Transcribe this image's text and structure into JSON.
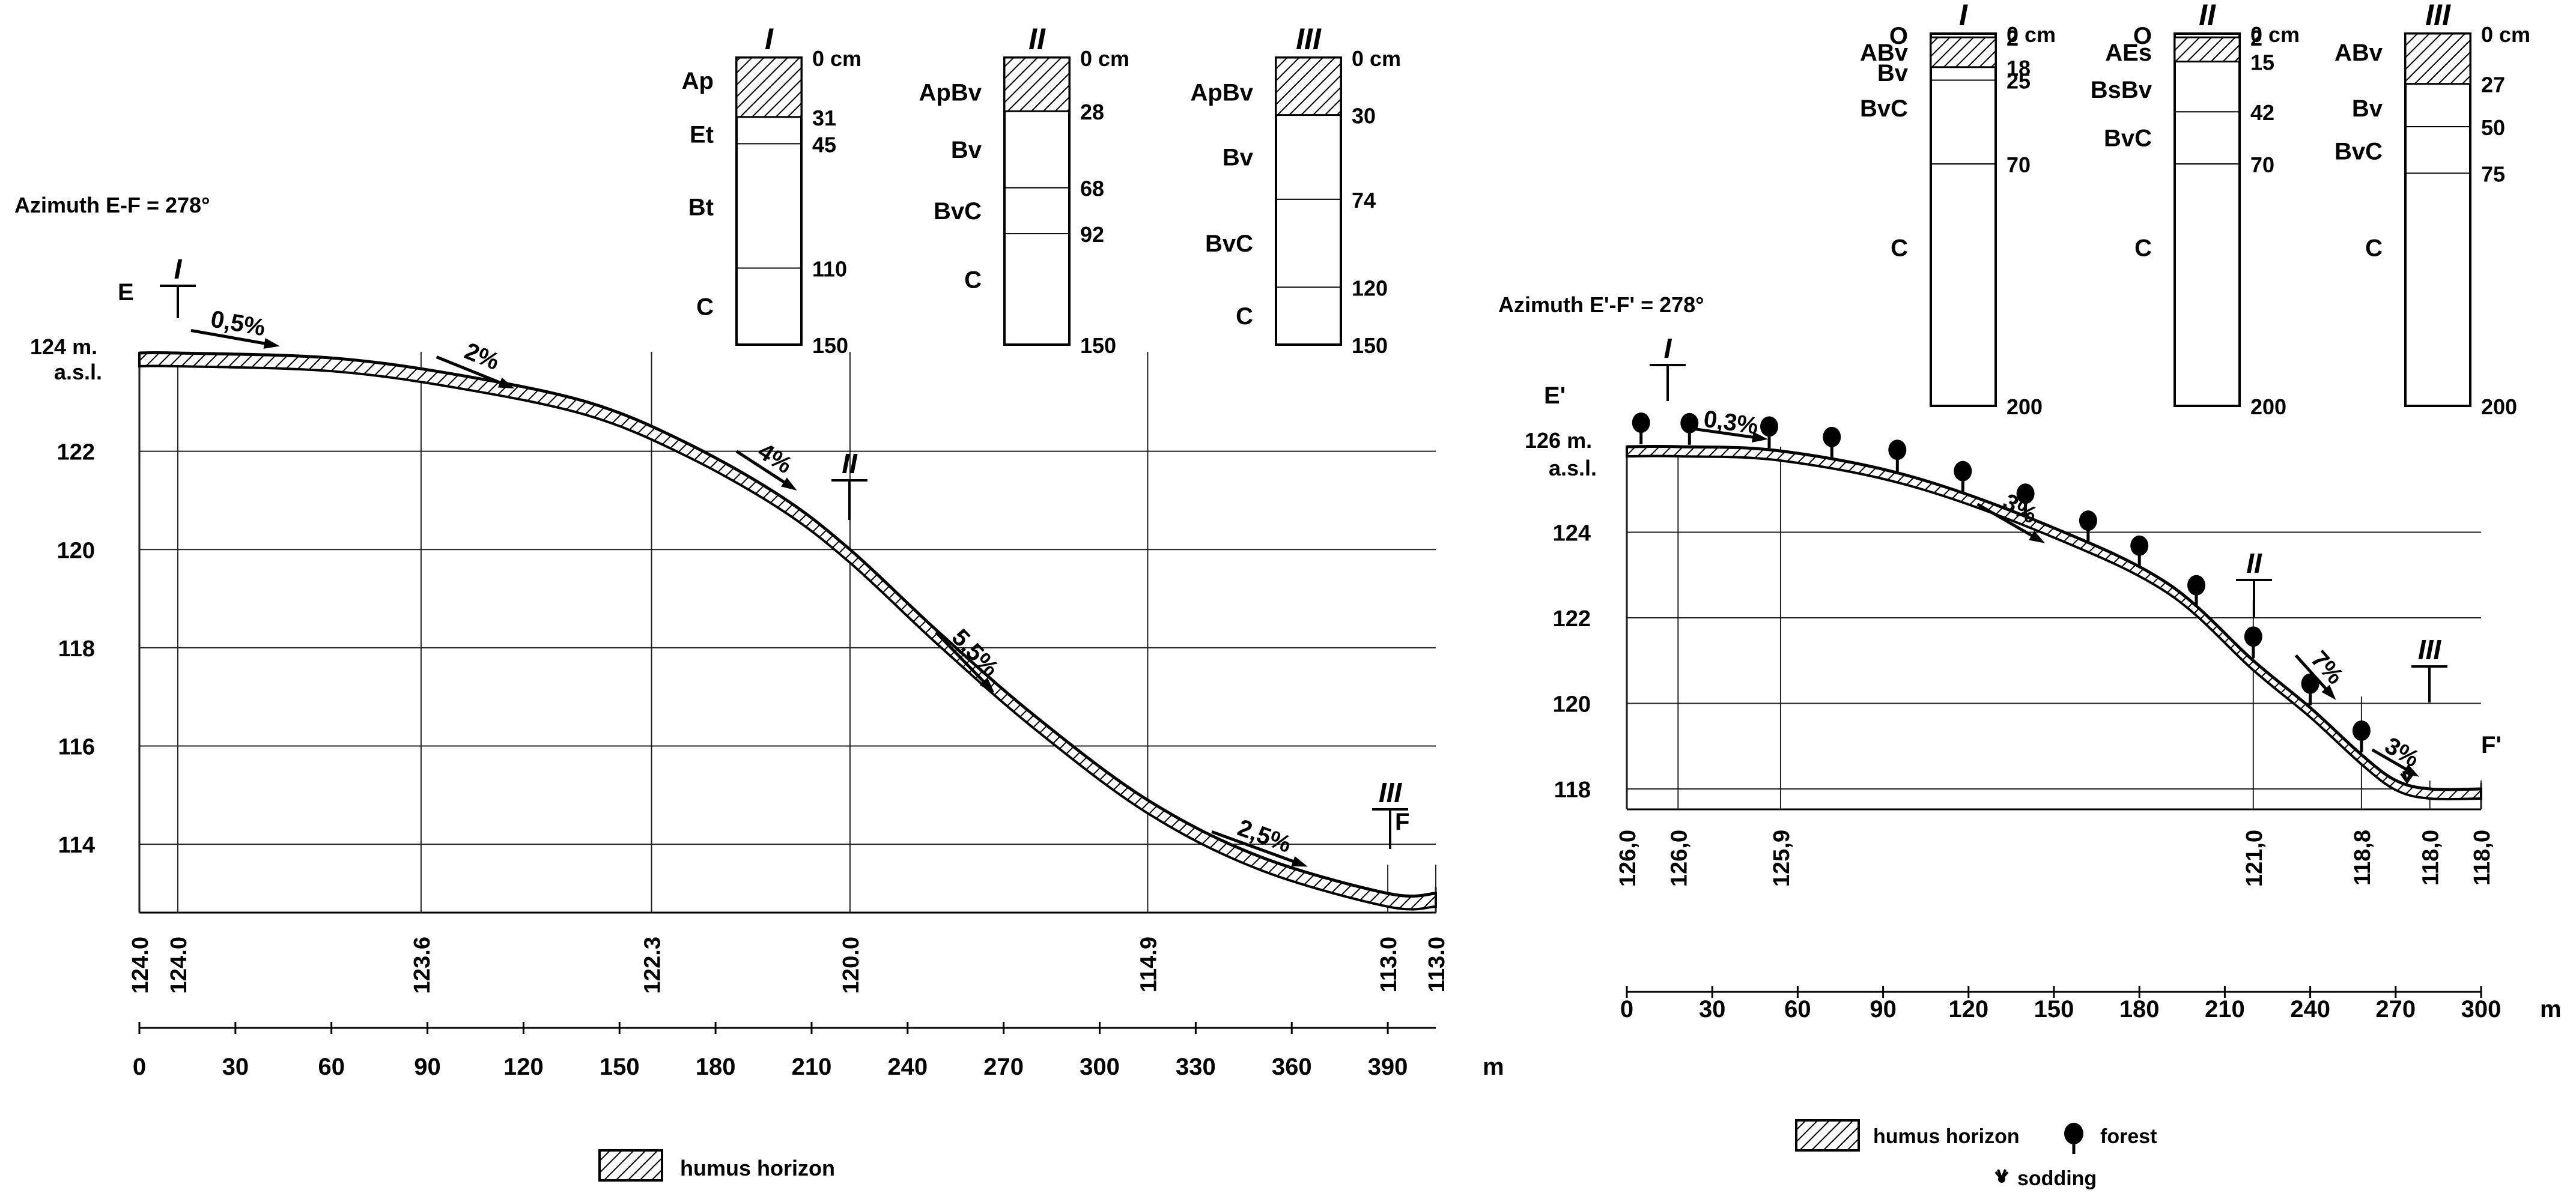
{
  "colors": {
    "ink": "#000000",
    "grid": "#222222",
    "paper": "#ffffff"
  },
  "legend": {
    "humus": "humus horizon",
    "forest": "forest",
    "sodding": "sodding"
  },
  "left": {
    "azimuth": "Azimuth E-F = 278°",
    "start_label": "E",
    "end_label": "F",
    "elev_top_label": "124 m.",
    "elev_top_label2": "a.s.l.",
    "elev_ticks": [
      "122",
      "120",
      "118",
      "116",
      "114"
    ],
    "distance_ticks": [
      "0",
      "30",
      "60",
      "90",
      "120",
      "150",
      "180",
      "210",
      "240",
      "270",
      "300",
      "330",
      "360",
      "390"
    ],
    "unit": "m",
    "station_elevations": [
      "124.0",
      "124.0",
      "123.6",
      "122.3",
      "120.0",
      "114.9",
      "113.0",
      "113.0"
    ],
    "slopes": [
      "0,5%",
      "2%",
      "4%",
      "5,5%",
      "2,5%"
    ],
    "profile_points": [
      [
        0,
        124.0
      ],
      [
        12,
        124.0
      ],
      [
        60,
        123.9
      ],
      [
        100,
        123.55
      ],
      [
        140,
        123.0
      ],
      [
        170,
        122.2
      ],
      [
        200,
        121.1
      ],
      [
        222,
        120.0
      ],
      [
        250,
        118.3
      ],
      [
        280,
        116.6
      ],
      [
        315,
        114.9
      ],
      [
        350,
        113.75
      ],
      [
        390,
        113.0
      ],
      [
        405,
        113.0
      ]
    ],
    "pit_markers": [
      {
        "label": "I",
        "distance": 12,
        "elevation": 124.0
      },
      {
        "label": "II",
        "distance": 222,
        "elevation": 120.0
      },
      {
        "label": "III",
        "distance": 390,
        "elevation": 113.0
      }
    ],
    "soil_profiles": [
      {
        "id": "I",
        "total_cm": 150,
        "hatch_to": 31,
        "depths": [
          "0 cm",
          "31",
          "45",
          "110",
          "150"
        ],
        "depth_values": [
          0,
          31,
          45,
          110,
          150
        ],
        "horizons": [
          {
            "name": "Ap",
            "depth": 12
          },
          {
            "name": "Et",
            "depth": 40
          },
          {
            "name": "Bt",
            "depth": 78
          },
          {
            "name": "C",
            "depth": 130
          }
        ]
      },
      {
        "id": "II",
        "total_cm": 150,
        "hatch_to": 28,
        "depths": [
          "0 cm",
          "28",
          "68",
          "92",
          "150"
        ],
        "depth_values": [
          0,
          28,
          68,
          92,
          150
        ],
        "horizons": [
          {
            "name": "ApBv",
            "depth": 18
          },
          {
            "name": "Bv",
            "depth": 48
          },
          {
            "name": "BvC",
            "depth": 80
          },
          {
            "name": "C",
            "depth": 116
          }
        ]
      },
      {
        "id": "III",
        "total_cm": 150,
        "hatch_to": 30,
        "depths": [
          "0 cm",
          "30",
          "74",
          "120",
          "150"
        ],
        "depth_values": [
          0,
          30,
          74,
          120,
          150
        ],
        "horizons": [
          {
            "name": "ApBv",
            "depth": 18
          },
          {
            "name": "Bv",
            "depth": 52
          },
          {
            "name": "BvC",
            "depth": 97
          },
          {
            "name": "C",
            "depth": 135
          }
        ]
      }
    ]
  },
  "right": {
    "azimuth": "Azimuth E'-F' = 278°",
    "start_label": "E'",
    "end_label": "F'",
    "elev_top_label": "126 m.",
    "elev_top_label2": "a.s.l.",
    "elev_ticks": [
      "124",
      "122",
      "120",
      "118"
    ],
    "distance_ticks": [
      "0",
      "30",
      "60",
      "90",
      "120",
      "150",
      "180",
      "210",
      "240",
      "270",
      "300"
    ],
    "unit": "m",
    "station_elevations": [
      "126,0",
      "126,0",
      "125,9",
      "121,0",
      "118,8",
      "118,0",
      "118,0"
    ],
    "slopes": [
      "0,3%",
      "3%",
      "7%",
      "3%"
    ],
    "profile_points": [
      [
        0,
        126.0
      ],
      [
        18,
        126.0
      ],
      [
        54,
        125.9
      ],
      [
        100,
        125.3
      ],
      [
        150,
        124.1
      ],
      [
        190,
        122.8
      ],
      [
        220,
        121.0
      ],
      [
        240,
        119.9
      ],
      [
        258,
        118.8
      ],
      [
        270,
        118.2
      ],
      [
        282,
        118.0
      ],
      [
        300,
        118.0
      ]
    ],
    "pit_markers": [
      {
        "label": "I",
        "distance": 18,
        "elevation": 126.0
      },
      {
        "label": "II",
        "distance": 220,
        "elevation": 121.0
      },
      {
        "label": "III",
        "distance": 282,
        "elevation": 118.0
      }
    ],
    "soil_profiles": [
      {
        "id": "I",
        "total_cm": 200,
        "hatch_from": 2,
        "hatch_to": 18,
        "depths": [
          "0 cm",
          "2",
          "18",
          "25",
          "70",
          "200"
        ],
        "depth_values": [
          0,
          2,
          18,
          25,
          70,
          200
        ],
        "horizons": [
          {
            "name": "O",
            "depth": 1
          },
          {
            "name": "ABv",
            "depth": 10
          },
          {
            "name": "Bv",
            "depth": 21
          },
          {
            "name": "BvC",
            "depth": 40
          },
          {
            "name": "C",
            "depth": 115
          }
        ]
      },
      {
        "id": "II",
        "total_cm": 200,
        "hatch_from": 2,
        "hatch_to": 15,
        "depths": [
          "0 cm",
          "2",
          "15",
          "42",
          "70",
          "200"
        ],
        "depth_values": [
          0,
          2,
          15,
          42,
          70,
          200
        ],
        "horizons": [
          {
            "name": "O",
            "depth": 1
          },
          {
            "name": "AEs",
            "depth": 10
          },
          {
            "name": "BsBv",
            "depth": 30
          },
          {
            "name": "BvC",
            "depth": 56
          },
          {
            "name": "C",
            "depth": 115
          }
        ]
      },
      {
        "id": "III",
        "total_cm": 200,
        "hatch_from": 0,
        "hatch_to": 27,
        "depths": [
          "0 cm",
          "27",
          "50",
          "75",
          "200"
        ],
        "depth_values": [
          0,
          27,
          50,
          75,
          200
        ],
        "horizons": [
          {
            "name": "ABv",
            "depth": 10
          },
          {
            "name": "Bv",
            "depth": 40
          },
          {
            "name": "BvC",
            "depth": 63
          },
          {
            "name": "C",
            "depth": 115
          }
        ]
      }
    ]
  }
}
